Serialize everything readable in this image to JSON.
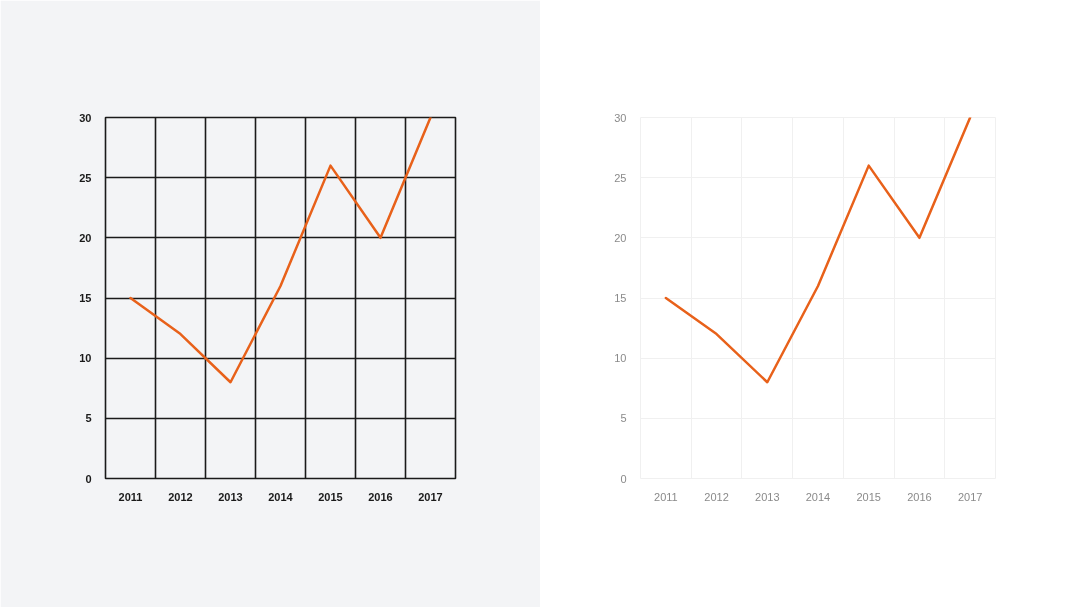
{
  "chart_data": [
    {
      "type": "line",
      "categories": [
        "2011",
        "2012",
        "2013",
        "2014",
        "2015",
        "2016",
        "2017"
      ],
      "series": [
        {
          "color": "#e8611a",
          "values": [
            15,
            12,
            8,
            16,
            26,
            20,
            30
          ]
        }
      ],
      "ylim": [
        0,
        30
      ],
      "yticks": [
        0,
        5,
        10,
        15,
        20,
        25,
        30
      ],
      "grid": true
    },
    {
      "type": "line",
      "categories": [
        "2011",
        "2012",
        "2013",
        "2014",
        "2015",
        "2016",
        "2017"
      ],
      "series": [
        {
          "color": "#e8611a",
          "values": [
            15,
            12,
            8,
            16,
            26,
            20,
            30
          ]
        }
      ],
      "ylim": [
        0,
        30
      ],
      "yticks": [
        0,
        5,
        10,
        15,
        20,
        25,
        30
      ],
      "grid": true
    }
  ]
}
